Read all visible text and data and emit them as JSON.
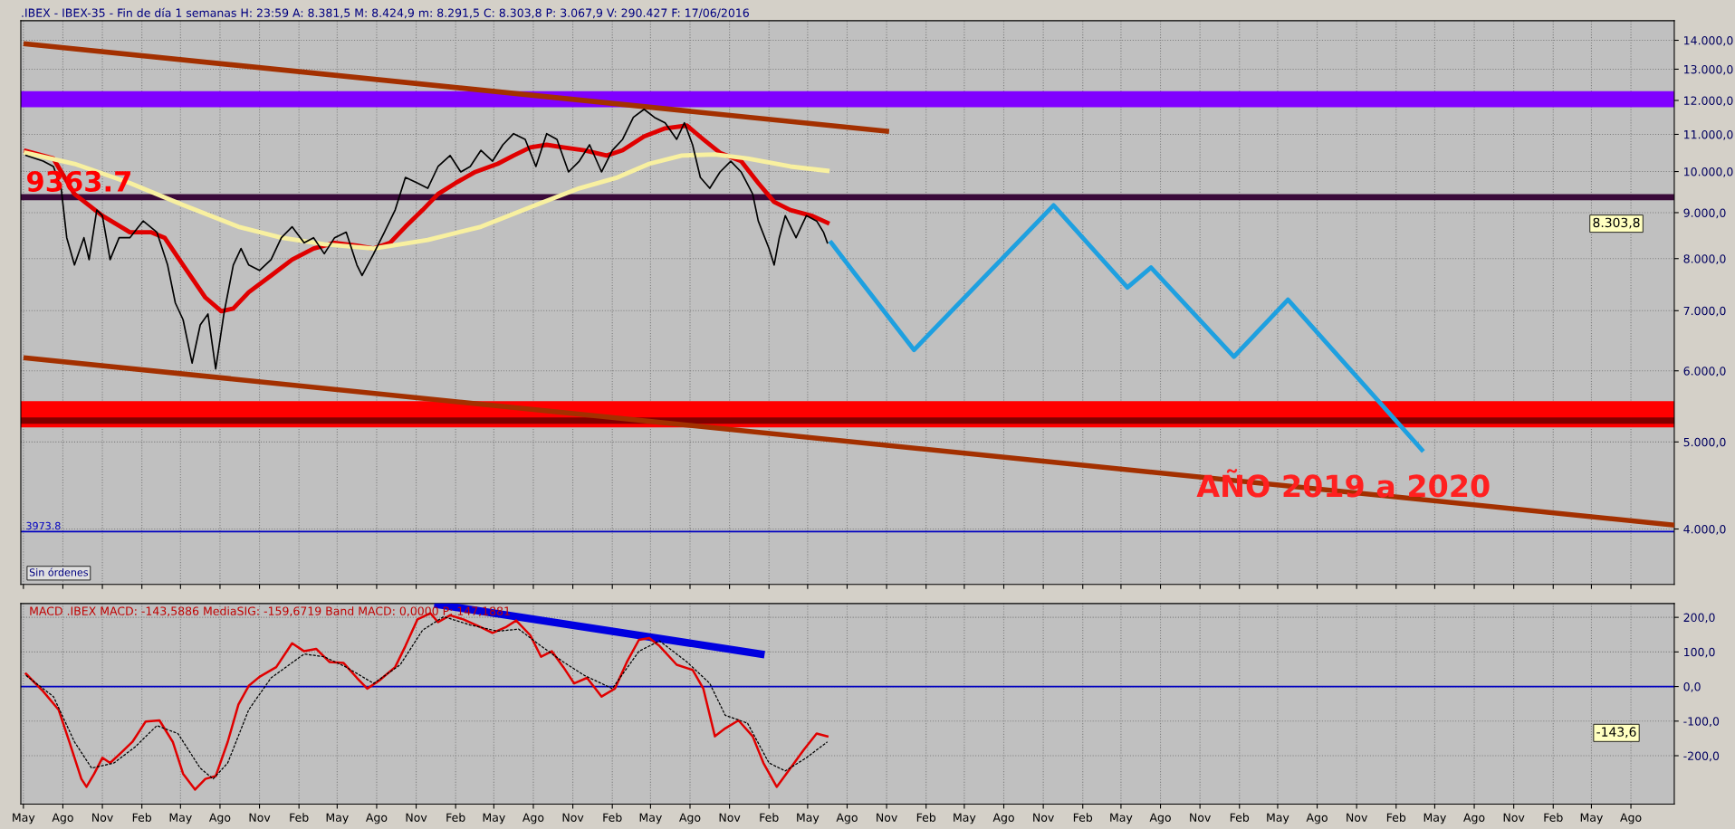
{
  "chart_data": [
    {
      "type": "line",
      "title": ".IBEX - IBEX-35 - Fin de día 1 semanas H: 23:59 A: 8.381,5 M: 8.424,9 m: 8.291,5 C: 8.303,8 P: 3.067,9 V: 290.427 F: 17/06/2016",
      "log": "y",
      "tick_labels": "y",
      "grid": true,
      "xlim": [
        "2011-04-25",
        "2021-11-10"
      ],
      "xticks": [
        {
          "value": "2011-05-01",
          "label": null
        },
        {
          "value": "2011-08-01",
          "label": null
        },
        {
          "value": "2011-11-01",
          "label": null
        },
        {
          "value": "2012-02-01",
          "label": null
        },
        {
          "value": "2012-05-01",
          "label": null
        },
        {
          "value": "2012-08-01",
          "label": null
        },
        {
          "value": "2012-11-01",
          "label": null
        },
        {
          "value": "2013-02-01",
          "label": null
        },
        {
          "value": "2013-05-01",
          "label": null
        },
        {
          "value": "2013-08-01",
          "label": null
        },
        {
          "value": "2013-11-01",
          "label": null
        },
        {
          "value": "2014-02-01",
          "label": null
        },
        {
          "value": "2014-05-01",
          "label": null
        },
        {
          "value": "2014-08-01",
          "label": null
        },
        {
          "value": "2014-11-01",
          "label": null
        },
        {
          "value": "2015-02-01",
          "label": null
        },
        {
          "value": "2015-05-01",
          "label": null
        },
        {
          "value": "2015-08-01",
          "label": null
        },
        {
          "value": "2015-11-01",
          "label": null
        },
        {
          "value": "2016-02-01",
          "label": null
        },
        {
          "value": "2016-05-01",
          "label": null
        },
        {
          "value": "2016-08-01",
          "label": null
        },
        {
          "value": "2016-11-01",
          "label": null
        },
        {
          "value": "2017-02-01",
          "label": null
        },
        {
          "value": "2017-05-01",
          "label": null
        },
        {
          "value": "2017-08-01",
          "label": null
        },
        {
          "value": "2017-11-01",
          "label": null
        },
        {
          "value": "2018-02-01",
          "label": null
        },
        {
          "value": "2018-05-01",
          "label": null
        },
        {
          "value": "2018-08-01",
          "label": null
        },
        {
          "value": "2018-11-01",
          "label": null
        },
        {
          "value": "2019-02-01",
          "label": null
        },
        {
          "value": "2019-05-01",
          "label": null
        },
        {
          "value": "2019-08-01",
          "label": null
        },
        {
          "value": "2019-11-01",
          "label": null
        },
        {
          "value": "2020-02-01",
          "label": null
        },
        {
          "value": "2020-05-01",
          "label": null
        },
        {
          "value": "2020-08-01",
          "label": null
        },
        {
          "value": "2020-11-01",
          "label": null
        },
        {
          "value": "2021-02-01",
          "label": null
        },
        {
          "value": "2021-05-01",
          "label": null
        },
        {
          "value": "2021-08-01",
          "label": null
        }
      ],
      "ylim": [
        3470,
        14720
      ],
      "yticks": [
        {
          "value": 4000,
          "label": "4.000,0"
        },
        {
          "value": 5000,
          "label": "5.000,0"
        },
        {
          "value": 6000,
          "label": "6.000,0"
        },
        {
          "value": 7000,
          "label": "7.000,0"
        },
        {
          "value": 8000,
          "label": "8.000,0"
        },
        {
          "value": 9000,
          "label": "9.000,0"
        },
        {
          "value": 10000,
          "label": "10.000,0"
        },
        {
          "value": 11000,
          "label": "11.000,0"
        },
        {
          "value": 12000,
          "label": "12.000,0"
        },
        {
          "value": 13000,
          "label": "13.000,0"
        },
        {
          "value": 14000,
          "label": "14.000,0"
        }
      ],
      "bands": [
        {
          "axis": "y",
          "from": 11790,
          "to": 12290,
          "color": "#8000ff"
        },
        {
          "axis": "y",
          "from": 5190,
          "to": 5550,
          "color": "#ff0000"
        }
      ],
      "ref_lines": [
        {
          "axis": "y",
          "value": 9363.7,
          "label": "9363.7",
          "color": "#3a0a3a"
        },
        {
          "axis": "y",
          "value": 5281.8,
          "color": "#800000"
        },
        {
          "axis": "y",
          "value": 3973.8,
          "label": "3973.8",
          "color": "#0000c0"
        }
      ],
      "series": [
        {
          "color": "#000000",
          "x": [
            "2011-05-07",
            "2011-06-16",
            "2011-07-10",
            "2011-07-28",
            "2011-08-10",
            "2011-08-28",
            "2011-09-19",
            "2011-10-01",
            "2011-10-19",
            "2011-11-01",
            "2011-11-19",
            "2011-12-10",
            "2012-01-04",
            "2012-02-04",
            "2012-03-07",
            "2012-04-01",
            "2012-04-19",
            "2012-05-07",
            "2012-05-28",
            "2012-06-16",
            "2012-07-04",
            "2012-07-22",
            "2012-08-10",
            "2012-09-01",
            "2012-09-19",
            "2012-10-07",
            "2012-11-01",
            "2012-11-28",
            "2012-12-22",
            "2013-01-16",
            "2013-02-13",
            "2013-03-07",
            "2013-04-01",
            "2013-04-25",
            "2013-05-22",
            "2013-06-16",
            "2013-06-28",
            "2013-07-25",
            "2013-08-19",
            "2013-09-13",
            "2013-10-07",
            "2013-11-04",
            "2013-11-28",
            "2013-12-22",
            "2014-01-19",
            "2014-02-13",
            "2014-03-07",
            "2014-04-01",
            "2014-04-28",
            "2014-05-22",
            "2014-06-16",
            "2014-07-13",
            "2014-08-07",
            "2014-09-01",
            "2014-09-25",
            "2014-10-22",
            "2014-11-16",
            "2014-12-10",
            "2015-01-07",
            "2015-02-01",
            "2015-02-25",
            "2015-03-22",
            "2015-04-16",
            "2015-05-10",
            "2015-06-04",
            "2015-07-01",
            "2015-07-19",
            "2015-08-07",
            "2015-08-25",
            "2015-09-16",
            "2015-10-10",
            "2015-11-04",
            "2015-11-28",
            "2015-12-25",
            "2016-01-07",
            "2016-02-01",
            "2016-02-13",
            "2016-02-25",
            "2016-03-10",
            "2016-04-04",
            "2016-04-28",
            "2016-05-22",
            "2016-06-07",
            "2016-06-16"
          ],
          "values": [
            10420,
            10270,
            10130,
            9580,
            8440,
            7870,
            8440,
            7980,
            9060,
            8930,
            7980,
            8440,
            8440,
            8810,
            8560,
            7870,
            7140,
            6840,
            6120,
            6750,
            6940,
            6030,
            6940,
            7870,
            8210,
            7870,
            7760,
            7980,
            8440,
            8680,
            8330,
            8440,
            8100,
            8440,
            8560,
            7870,
            7660,
            8100,
            8560,
            9060,
            9850,
            9710,
            9580,
            10130,
            10420,
            9990,
            10130,
            10560,
            10270,
            10710,
            11020,
            10860,
            10130,
            11020,
            10860,
            9990,
            10270,
            10710,
            9990,
            10560,
            10860,
            11490,
            11730,
            11490,
            11330,
            10860,
            11330,
            10710,
            9850,
            9580,
            9990,
            10270,
            9990,
            9440,
            8810,
            8210,
            7870,
            8440,
            8930,
            8440,
            8930,
            8810,
            8560,
            8330
          ]
        },
        {
          "color": "#e00000",
          "x": [
            "2011-05-07",
            "2011-07-10",
            "2011-08-28",
            "2011-11-01",
            "2012-01-04",
            "2012-02-22",
            "2012-03-25",
            "2012-05-07",
            "2012-06-28",
            "2012-08-04",
            "2012-09-01",
            "2012-10-07",
            "2012-11-28",
            "2013-01-16",
            "2013-03-07",
            "2013-04-25",
            "2013-06-16",
            "2013-07-25",
            "2013-09-01",
            "2013-10-07",
            "2013-11-16",
            "2013-12-22",
            "2014-02-01",
            "2014-03-19",
            "2014-05-10",
            "2014-06-16",
            "2014-07-25",
            "2014-09-01",
            "2014-10-10",
            "2014-11-28",
            "2015-01-19",
            "2015-02-25",
            "2015-04-16",
            "2015-06-04",
            "2015-07-25",
            "2015-09-01",
            "2015-10-10",
            "2015-11-28",
            "2016-01-07",
            "2016-02-13",
            "2016-03-22",
            "2016-05-10",
            "2016-06-16"
          ],
          "values": [
            10540,
            10340,
            9440,
            8930,
            8560,
            8560,
            8440,
            7870,
            7240,
            6990,
            7040,
            7340,
            7660,
            7980,
            8210,
            8330,
            8270,
            8210,
            8330,
            8680,
            9060,
            9440,
            9710,
            9990,
            10200,
            10420,
            10640,
            10710,
            10640,
            10560,
            10420,
            10560,
            10940,
            11170,
            11250,
            10860,
            10490,
            10270,
            9710,
            9250,
            9060,
            8930,
            8770
          ]
        },
        {
          "color": "#f8f0a0",
          "x": [
            "2011-05-07",
            "2011-08-28",
            "2012-01-04",
            "2012-05-07",
            "2012-09-13",
            "2012-12-22",
            "2013-04-01",
            "2013-07-25",
            "2013-11-28",
            "2014-04-01",
            "2014-08-07",
            "2014-11-16",
            "2015-02-13",
            "2015-04-28",
            "2015-07-13",
            "2015-09-28",
            "2015-12-13",
            "2016-03-22",
            "2016-06-16"
          ],
          "values": [
            10490,
            10200,
            9710,
            9180,
            8680,
            8440,
            8300,
            8210,
            8390,
            8680,
            9180,
            9580,
            9850,
            10200,
            10420,
            10450,
            10340,
            10130,
            10020
          ]
        },
        {
          "color": "#1ea0e0",
          "x": [
            "2016-06-25",
            "2016-08-16",
            "2017-01-04",
            "2017-11-25",
            "2018-05-16",
            "2018-07-10",
            "2019-01-19",
            "2019-05-25",
            "2020-04-01"
          ],
          "values": [
            8330,
            7730,
            6330,
            9170,
            7430,
            7820,
            6220,
            7200,
            4900
          ]
        },
        {
          "color": "#a33000",
          "x": [
            "2011-05-07",
            "2016-11-01"
          ],
          "values": [
            13870,
            11090
          ]
        },
        {
          "color": "#a33000",
          "x": [
            "2011-05-07",
            "2021-11-10"
          ],
          "values": [
            6200,
            4040
          ]
        }
      ],
      "annotations": [
        "AÑO 2019 a 2020",
        "8.303,8",
        "Sin órdenes"
      ]
    },
    {
      "type": "line",
      "title": "MACD .IBEX MACD: -143,5886 MediaSIG: -159,6719 Band MACD: 0,0000 P: 147,1881",
      "grid": true,
      "xlim": [
        "2011-04-25",
        "2021-11-10"
      ],
      "xticks": [
        {
          "value": "2011-05-01",
          "label": "May"
        },
        {
          "value": "2011-08-01",
          "label": "Ago"
        },
        {
          "value": "2011-11-01",
          "label": "Nov"
        },
        {
          "value": "2012-02-01",
          "label": "Feb"
        },
        {
          "value": "2012-05-01",
          "label": "May"
        },
        {
          "value": "2012-08-01",
          "label": "Ago"
        },
        {
          "value": "2012-11-01",
          "label": "Nov"
        },
        {
          "value": "2013-02-01",
          "label": "Feb"
        },
        {
          "value": "2013-05-01",
          "label": "May"
        },
        {
          "value": "2013-08-01",
          "label": "Ago"
        },
        {
          "value": "2013-11-01",
          "label": "Nov"
        },
        {
          "value": "2014-02-01",
          "label": "Feb"
        },
        {
          "value": "2014-05-01",
          "label": "May"
        },
        {
          "value": "2014-08-01",
          "label": "Ago"
        },
        {
          "value": "2014-11-01",
          "label": "Nov"
        },
        {
          "value": "2015-02-01",
          "label": "Feb"
        },
        {
          "value": "2015-05-01",
          "label": "May"
        },
        {
          "value": "2015-08-01",
          "label": "Ago"
        },
        {
          "value": "2015-11-01",
          "label": "Nov"
        },
        {
          "value": "2016-02-01",
          "label": "Feb"
        },
        {
          "value": "2016-05-01",
          "label": "May"
        },
        {
          "value": "2016-08-01",
          "label": "Ago"
        },
        {
          "value": "2016-11-01",
          "label": "Nov"
        },
        {
          "value": "2017-02-01",
          "label": "Feb"
        },
        {
          "value": "2017-05-01",
          "label": "May"
        },
        {
          "value": "2017-08-01",
          "label": "Ago"
        },
        {
          "value": "2017-11-01",
          "label": "Nov"
        },
        {
          "value": "2018-02-01",
          "label": "Feb"
        },
        {
          "value": "2018-05-01",
          "label": "May"
        },
        {
          "value": "2018-08-01",
          "label": "Ago"
        },
        {
          "value": "2018-11-01",
          "label": "Nov"
        },
        {
          "value": "2019-02-01",
          "label": "Feb"
        },
        {
          "value": "2019-05-01",
          "label": "May"
        },
        {
          "value": "2019-08-01",
          "label": "Ago"
        },
        {
          "value": "2019-11-01",
          "label": "Nov"
        },
        {
          "value": "2020-02-01",
          "label": "Feb"
        },
        {
          "value": "2020-05-01",
          "label": "May"
        },
        {
          "value": "2020-08-01",
          "label": "Ago"
        },
        {
          "value": "2020-11-01",
          "label": "Nov"
        },
        {
          "value": "2021-02-01",
          "label": "Feb"
        },
        {
          "value": "2021-05-01",
          "label": "May"
        },
        {
          "value": "2021-08-01",
          "label": "Ago"
        }
      ],
      "ylim": [
        -340,
        240
      ],
      "yticks": [
        {
          "value": -200,
          "label": "-200,0"
        },
        {
          "value": -100,
          "label": "-100,0"
        },
        {
          "value": 0,
          "label": "0,0"
        },
        {
          "value": 100,
          "label": "100,0"
        },
        {
          "value": 200,
          "label": "200,0"
        }
      ],
      "ref_lines": [
        {
          "axis": "y",
          "value": 0,
          "color": "#0000c0"
        }
      ],
      "series": [
        {
          "color": "#e00000",
          "x": [
            "2011-05-07",
            "2011-06-16",
            "2011-07-22",
            "2011-08-16",
            "2011-09-13",
            "2011-09-25",
            "2011-10-13",
            "2011-11-01",
            "2011-11-19",
            "2011-12-16",
            "2012-01-10",
            "2012-02-10",
            "2012-03-13",
            "2012-04-13",
            "2012-05-07",
            "2012-06-04",
            "2012-06-28",
            "2012-07-22",
            "2012-08-19",
            "2012-09-13",
            "2012-10-07",
            "2012-11-01",
            "2012-12-10",
            "2013-01-16",
            "2013-02-13",
            "2013-03-13",
            "2013-04-13",
            "2013-05-16",
            "2013-06-16",
            "2013-07-10",
            "2013-08-07",
            "2013-09-13",
            "2013-10-07",
            "2013-11-04",
            "2013-12-04",
            "2013-12-22",
            "2014-01-19",
            "2014-02-19",
            "2014-04-01",
            "2014-04-28",
            "2014-05-28",
            "2014-06-22",
            "2014-07-25",
            "2014-08-19",
            "2014-09-13",
            "2014-10-10",
            "2014-11-04",
            "2014-12-04",
            "2015-01-07",
            "2015-02-07",
            "2015-03-07",
            "2015-04-04",
            "2015-04-28",
            "2015-05-22",
            "2015-07-01",
            "2015-08-07",
            "2015-09-01",
            "2015-09-28",
            "2015-10-22",
            "2015-11-22",
            "2015-12-25",
            "2016-01-19",
            "2016-02-19",
            "2016-03-22",
            "2016-04-22",
            "2016-05-22",
            "2016-06-16"
          ],
          "values": [
            37,
            -14,
            -67,
            -160,
            -267,
            -290,
            -252,
            -206,
            -221,
            -190,
            -160,
            -101,
            -98,
            -160,
            -252,
            -298,
            -267,
            -259,
            -160,
            -52,
            2,
            28,
            56,
            125,
            102,
            109,
            71,
            68,
            25,
            -6,
            17,
            56,
            117,
            194,
            212,
            186,
            206,
            194,
            171,
            155,
            171,
            191,
            148,
            86,
            102,
            56,
            9,
            25,
            -29,
            -6,
            71,
            135,
            140,
            117,
            63,
            48,
            -6,
            -144,
            -121,
            -98,
            -144,
            -221,
            -290,
            -236,
            -183,
            -136,
            -144
          ]
        },
        {
          "color": "#000000",
          "line_style": "dashed",
          "x": [
            "2011-05-07",
            "2011-07-10",
            "2011-08-28",
            "2011-10-07",
            "2011-11-28",
            "2012-01-16",
            "2012-03-07",
            "2012-04-25",
            "2012-06-16",
            "2012-07-16",
            "2012-08-19",
            "2012-10-07",
            "2012-11-28",
            "2013-02-13",
            "2013-04-01",
            "2013-05-22",
            "2013-07-25",
            "2013-09-25",
            "2013-11-16",
            "2014-01-04",
            "2014-03-07",
            "2014-05-10",
            "2014-06-28",
            "2014-08-19",
            "2014-10-10",
            "2014-11-28",
            "2015-02-01",
            "2015-04-04",
            "2015-05-22",
            "2015-07-25",
            "2015-09-16",
            "2015-10-22",
            "2015-12-13",
            "2016-02-01",
            "2016-03-10",
            "2016-04-28",
            "2016-06-16"
          ],
          "values": [
            32,
            -29,
            -160,
            -236,
            -221,
            -175,
            -113,
            -136,
            -236,
            -267,
            -221,
            -67,
            25,
            94,
            86,
            56,
            9,
            63,
            163,
            202,
            178,
            160,
            166,
            117,
            71,
            32,
            -6,
            102,
            132,
            71,
            9,
            -83,
            -106,
            -221,
            -244,
            -206,
            -160
          ]
        },
        {
          "color": "#0000e0",
          "x": [
            "2013-12-22",
            "2016-01-13"
          ],
          "values": [
            237,
            94
          ]
        }
      ],
      "annotations": [
        "-143,6"
      ]
    }
  ]
}
